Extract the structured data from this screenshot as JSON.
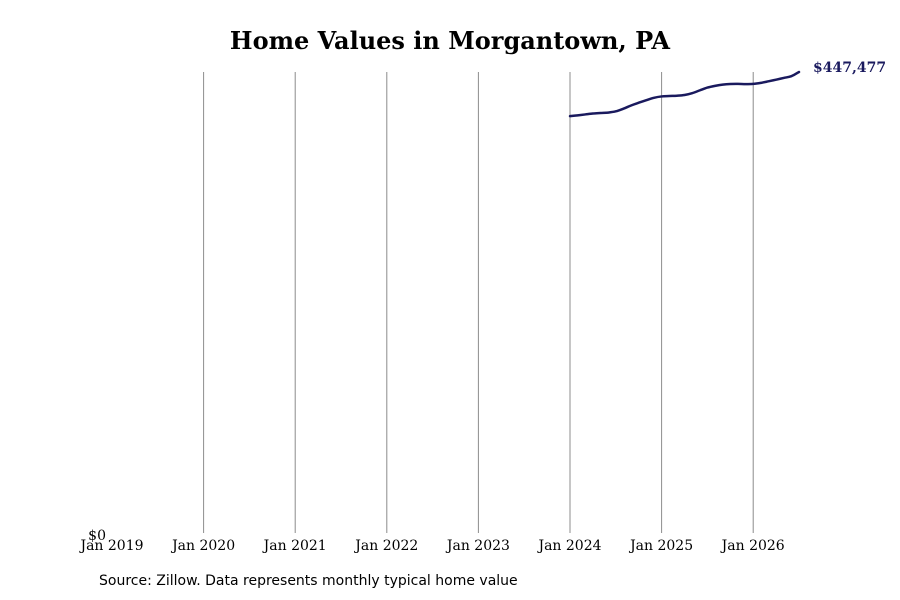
{
  "source_note": "Source: Zillow. Data represents monthly typical home value",
  "chart_data": {
    "type": "line",
    "title": "Home Values in Morgantown, PA",
    "xlabel": "",
    "ylabel": "",
    "x_ticks": [
      "Jan 2019",
      "Jan 2020",
      "Jan 2021",
      "Jan 2022",
      "Jan 2023",
      "Jan 2024",
      "Jan 2025",
      "Jan 2026"
    ],
    "y_ticks": [
      "$0"
    ],
    "ylim": [
      0,
      447477
    ],
    "xlim": [
      "2019-01",
      "2026-07"
    ],
    "grid": "vertical lines at each January",
    "line_color": "#1a1a5e",
    "end_label": "$447,477",
    "series": [
      {
        "x": [
          "2024-01",
          "2024-02",
          "2024-03",
          "2024-04",
          "2024-05",
          "2024-06",
          "2024-07",
          "2024-08",
          "2024-09",
          "2024-10",
          "2024-11",
          "2024-12",
          "2025-01",
          "2025-02",
          "2025-03",
          "2025-04",
          "2025-05",
          "2025-06",
          "2025-07",
          "2025-08",
          "2025-09",
          "2025-10",
          "2025-11",
          "2025-12",
          "2026-01",
          "2026-02",
          "2026-03",
          "2026-04",
          "2026-05",
          "2026-06",
          "2026-07"
        ],
        "values": [
          404500,
          405300,
          406200,
          407100,
          407600,
          408000,
          409200,
          411800,
          414900,
          417600,
          420100,
          422400,
          423700,
          424100,
          424400,
          425100,
          426900,
          429600,
          432300,
          434000,
          435200,
          435800,
          435900,
          435700,
          435900,
          436900,
          438400,
          440000,
          441700,
          443400,
          447477
        ]
      }
    ]
  }
}
